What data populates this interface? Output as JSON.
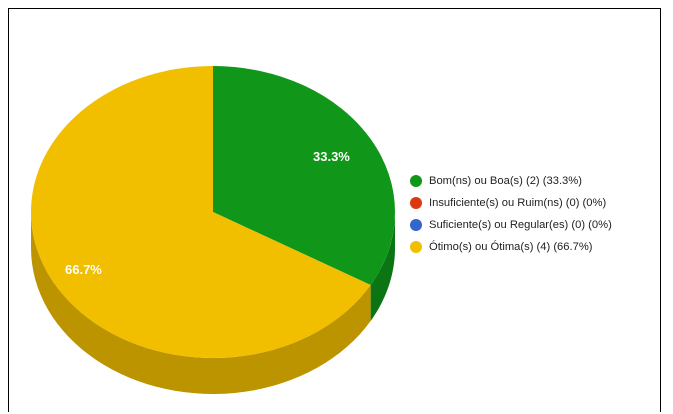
{
  "chart_data": {
    "type": "pie",
    "style": "3d",
    "slices": [
      {
        "label": "Bom(ns) ou Boa(s) (2) (33.3%)",
        "value": 2,
        "percent": "33.3%",
        "color": "#109618"
      },
      {
        "label": "Insuficiente(s) ou Ruim(ns) (0) (0%)",
        "value": 0,
        "percent": "0%",
        "color": "#dc3912"
      },
      {
        "label": "Suficiente(s) ou Regular(es) (0) (0%)",
        "value": 0,
        "percent": "0%",
        "color": "#3366cc"
      },
      {
        "label": "Ótimo(s) ou Ótima(s) (4) (66.7%)",
        "value": 4,
        "percent": "66.7%",
        "color": "#f1be00"
      }
    ],
    "legend_position": "right"
  }
}
